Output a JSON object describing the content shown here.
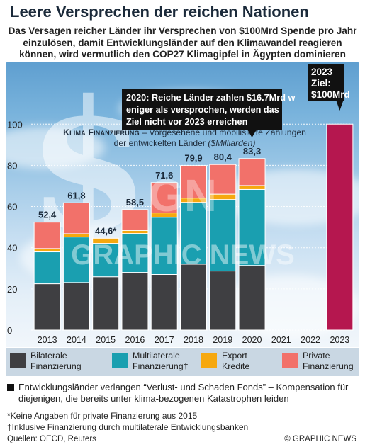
{
  "title": "Leere Versprechen der reichen Nationen",
  "subtitle": "Das Versagen reicher Länder ihr Versprechen von $100Mrd Spende pro Jahr einzulösen, damit Entwicklungsländer auf den Klimawandel reagieren können, wird vermutlich den COP27 Klimagipfel in Ägypten dominieren",
  "chart_subtitle": {
    "bold": "Klima Finanzierung",
    "rest": " – Vorgesehene und mobilisierte Zahlungen der entwickelten Länder ",
    "unit": "($Milliarden)"
  },
  "chart_data": {
    "type": "bar",
    "stacked": true,
    "categories": [
      "2013",
      "2014",
      "2015",
      "2016",
      "2017",
      "2018",
      "2019",
      "2020",
      "2021",
      "2022",
      "2023"
    ],
    "series": [
      {
        "name": "Bilaterale Finanzierung",
        "color": "#3f3f42",
        "values": [
          22.5,
          23.1,
          25.9,
          28.0,
          27.0,
          32.0,
          28.7,
          31.4,
          null,
          null,
          null
        ]
      },
      {
        "name": "Multilaterale Finanzierung†",
        "color": "#1a9fb0",
        "values": [
          15.5,
          22.1,
          16.2,
          18.9,
          27.8,
          30.0,
          34.7,
          36.9,
          null,
          null,
          null
        ]
      },
      {
        "name": "Export Kredite",
        "color": "#f6a80f",
        "values": [
          1.6,
          1.6,
          2.5,
          1.5,
          2.1,
          2.1,
          2.6,
          1.9,
          null,
          null,
          null
        ]
      },
      {
        "name": "Private Finanzierung",
        "color": "#f2716a",
        "values": [
          12.8,
          15.0,
          null,
          10.1,
          14.7,
          15.8,
          14.4,
          13.1,
          null,
          null,
          null
        ]
      }
    ],
    "totals": [
      "52,4",
      "61,8",
      "44,6*",
      "58,5",
      "71,6",
      "79,9",
      "80,4",
      "83,3",
      "",
      "",
      ""
    ],
    "target": {
      "category": "2023",
      "value": 100,
      "color": "#b5174f",
      "label": "2023 Ziel: $100Mrd"
    },
    "annotation": "2020: Reiche Länder zahlen $16.7Mrd weniger als versprochen, werden das Ziel nicht vor 2023 erreichen",
    "yticks": [
      0,
      20,
      40,
      60,
      80,
      100
    ],
    "ylim": [
      0,
      108
    ]
  },
  "legend": [
    {
      "color": "#3f3f42",
      "label": "Bilaterale\nFinanzierung"
    },
    {
      "color": "#1a9fb0",
      "label": "Multilaterale\nFinanzierung†"
    },
    {
      "color": "#f6a80f",
      "label": "Export\nKredite"
    },
    {
      "color": "#f2716a",
      "label": "Private\nFinanzierung"
    }
  ],
  "note": "Entwicklungsländer verlangen “Verlust- und Schaden Fonds” – Kompensation für diejenigen, die bereits unter klima-bezogenen Katastrophen leiden",
  "footnote1": "*Keine Angaben für private Finanzierung aus 2015",
  "footnote2": "†Inklusive Finanzierung durch multilaterale Entwicklungsbanken",
  "source": "Quellen: OECD, Reuters",
  "credit": "© GRAPHIC NEWS",
  "watermark_text": "GRAPHIC NEWS",
  "watermark_logo": "GN"
}
